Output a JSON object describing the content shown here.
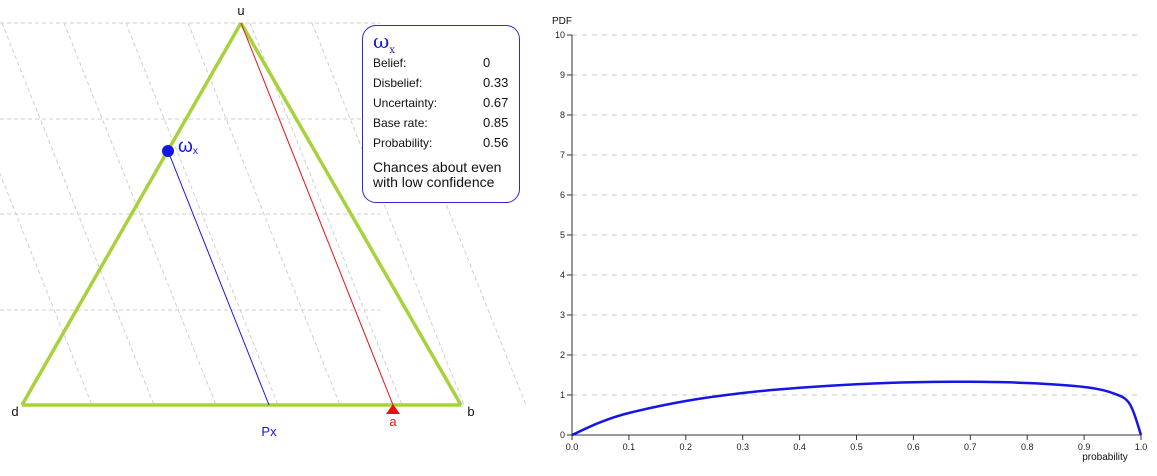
{
  "triangle": {
    "vertex_u": "u",
    "vertex_d": "d",
    "vertex_b": "b",
    "opinion_label": "ω",
    "opinion_sub": "x",
    "projected_label": "Px",
    "base_rate_marker": "a",
    "colors": {
      "edge": "#a8d23c",
      "opinion": "#1515e6",
      "base_rate": "#e61010",
      "grid": "#cfcfcf"
    }
  },
  "opinion": {
    "symbol": "ω",
    "subscript": "x",
    "rows": [
      {
        "label": "Belief:",
        "value": "0"
      },
      {
        "label": "Disbelief:",
        "value": "0.33"
      },
      {
        "label": "Uncertainty:",
        "value": "0.67"
      },
      {
        "label": "Base rate:",
        "value": "0.85"
      },
      {
        "label": "Probability:",
        "value": "0.56"
      }
    ],
    "verbal": "Chances about even with low confidence"
  },
  "chart_data": {
    "type": "line",
    "ylabel": "PDF",
    "xlabel": "probability",
    "xlim": [
      0,
      1
    ],
    "ylim": [
      0,
      10
    ],
    "x_ticks": [
      "0.0",
      "0.1",
      "0.2",
      "0.3",
      "0.4",
      "0.5",
      "0.6",
      "0.7",
      "0.8",
      "0.9",
      "1.0"
    ],
    "y_ticks": [
      "0",
      "1",
      "2",
      "3",
      "4",
      "5",
      "6",
      "7",
      "8",
      "9",
      "10"
    ],
    "grid": "horizontal dashed",
    "series": [
      {
        "color": "#1515e6",
        "x": [
          0.0,
          0.05,
          0.1,
          0.2,
          0.3,
          0.4,
          0.5,
          0.6,
          0.7,
          0.8,
          0.9,
          0.95,
          0.98,
          1.0
        ],
        "y": [
          0.0,
          0.32,
          0.55,
          0.85,
          1.05,
          1.18,
          1.27,
          1.32,
          1.33,
          1.3,
          1.2,
          1.05,
          0.78,
          0.0
        ]
      }
    ]
  }
}
